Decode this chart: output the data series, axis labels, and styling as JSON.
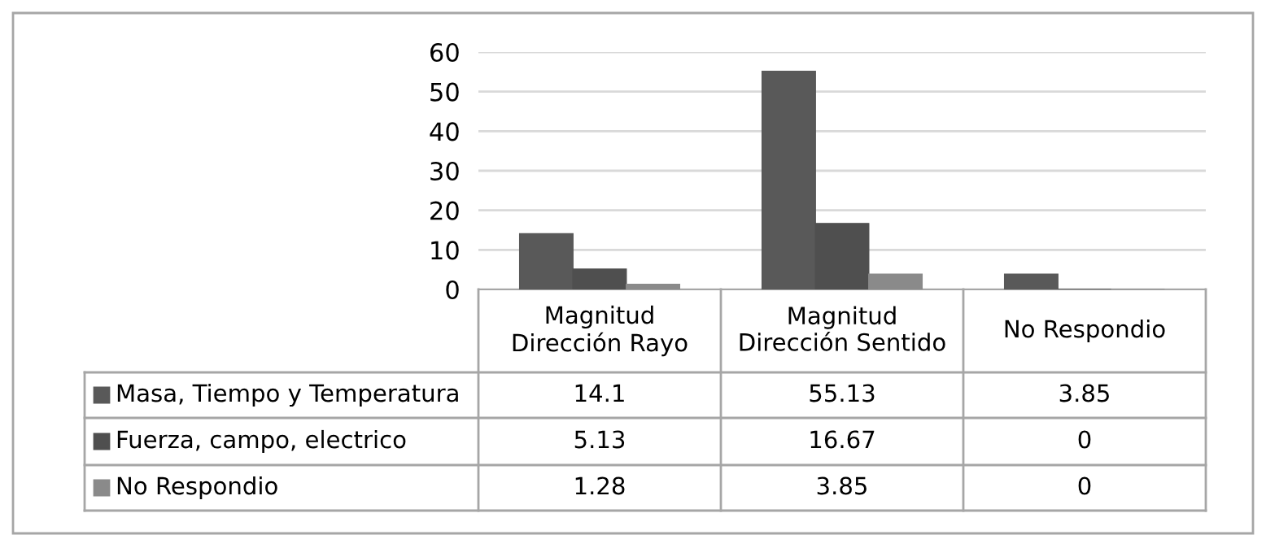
{
  "chart_data": {
    "type": "bar",
    "categories": [
      "Magnitud Dirección Rayo",
      "Magnitud Dirección Sentido",
      "No Respondio"
    ],
    "series": [
      {
        "name": "Masa, Tiempo y Temperatura",
        "color": "#595959",
        "values": [
          14.1,
          55.13,
          3.85
        ]
      },
      {
        "name": "Fuerza, campo, electrico",
        "color": "#4f4f4f",
        "values": [
          5.13,
          16.67,
          0
        ]
      },
      {
        "name": "No Respondio",
        "color": "#8a8a8a",
        "values": [
          1.28,
          3.85,
          0
        ]
      }
    ],
    "ylim": [
      0,
      60
    ],
    "yticks": [
      0,
      10,
      20,
      30,
      40,
      50,
      60
    ],
    "grid": "y",
    "data_labels": true,
    "legend": "bottom"
  }
}
